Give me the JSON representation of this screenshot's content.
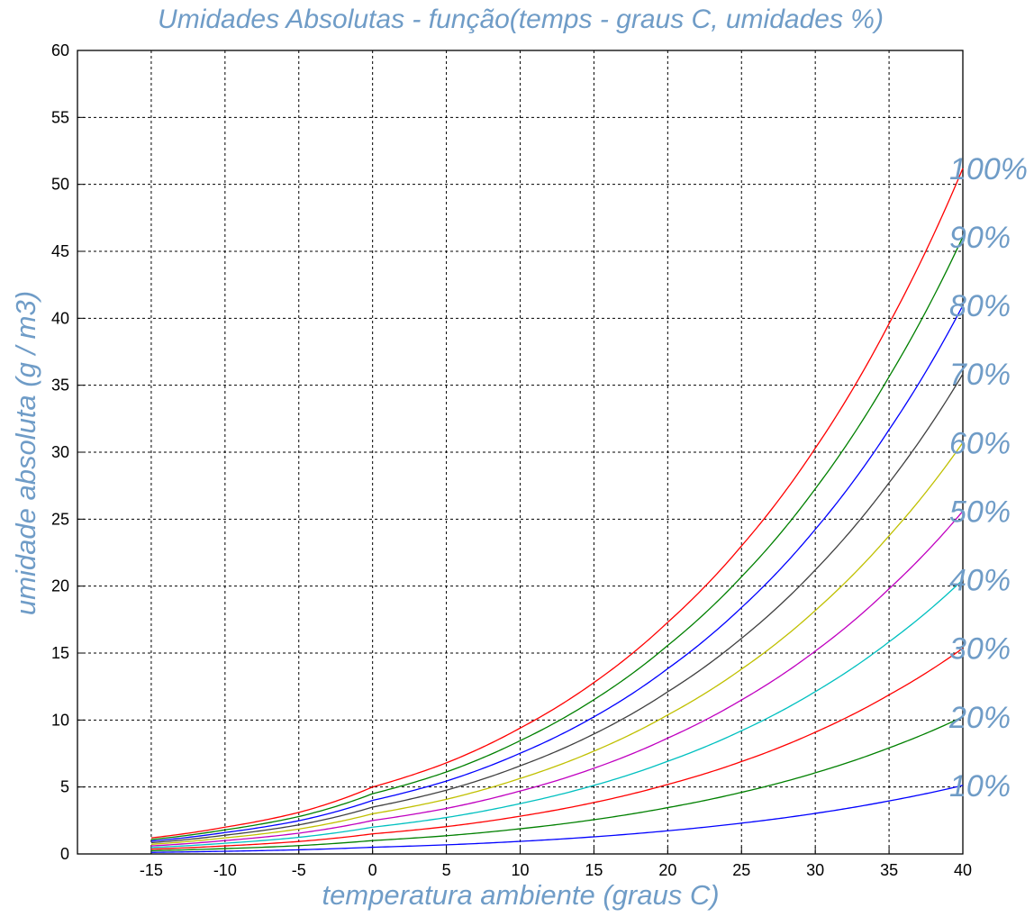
{
  "chart_data": {
    "type": "line",
    "title": "Umidades Absolutas - função(temps - graus C, umidades %)",
    "xlabel": "temperatura ambiente (graus C)",
    "ylabel": "umidade absoluta (g / m3)",
    "xlim": [
      -20,
      40
    ],
    "ylim": [
      0,
      60
    ],
    "x_ticks": [
      -15,
      -10,
      -5,
      0,
      5,
      10,
      15,
      20,
      25,
      30,
      35,
      40
    ],
    "y_ticks": [
      0,
      5,
      10,
      15,
      20,
      25,
      30,
      35,
      40,
      45,
      50,
      55,
      60
    ],
    "grid": true,
    "x": [
      -15,
      -10,
      -5,
      0,
      5,
      10,
      15,
      20,
      25,
      30,
      35,
      40
    ],
    "series": [
      {
        "name": "10%",
        "label": "10%",
        "color": "#0000ff",
        "values": [
          0.12,
          0.2,
          0.31,
          0.5,
          0.68,
          0.94,
          1.28,
          1.73,
          2.3,
          3.03,
          3.96,
          5.12
        ]
      },
      {
        "name": "20%",
        "label": "20%",
        "color": "#008000",
        "values": [
          0.24,
          0.4,
          0.62,
          1,
          1.36,
          1.88,
          2.56,
          3.46,
          4.6,
          6.06,
          7.92,
          10.24
        ]
      },
      {
        "name": "30%",
        "label": "30%",
        "color": "#ff0000",
        "values": [
          0.36,
          0.6,
          0.93,
          1.5,
          2.04,
          2.82,
          3.84,
          5.19,
          6.9,
          9.09,
          11.88,
          15.36
        ]
      },
      {
        "name": "40%",
        "label": "40%",
        "color": "#00c0c0",
        "values": [
          0.48,
          0.8,
          1.24,
          2,
          2.72,
          3.76,
          5.12,
          6.92,
          9.2,
          12.12,
          15.84,
          20.48
        ]
      },
      {
        "name": "50%",
        "label": "50%",
        "color": "#c000c0",
        "values": [
          0.6,
          1,
          1.55,
          2.5,
          3.4,
          4.7,
          6.4,
          8.65,
          11.5,
          15.15,
          19.8,
          25.6
        ]
      },
      {
        "name": "60%",
        "label": "60%",
        "color": "#c0c000",
        "values": [
          0.72,
          1.2,
          1.86,
          3,
          4.08,
          5.64,
          7.68,
          10.38,
          13.8,
          18.18,
          23.76,
          30.72
        ]
      },
      {
        "name": "70%",
        "label": "70%",
        "color": "#404040",
        "values": [
          0.84,
          1.4,
          2.17,
          3.5,
          4.76,
          6.58,
          8.96,
          12.11,
          16.1,
          21.21,
          27.72,
          35.84
        ]
      },
      {
        "name": "80%",
        "label": "80%",
        "color": "#0000ff",
        "values": [
          0.96,
          1.6,
          2.48,
          4,
          5.44,
          7.52,
          10.24,
          13.84,
          18.4,
          24.24,
          31.68,
          40.96
        ]
      },
      {
        "name": "90%",
        "label": "90%",
        "color": "#008000",
        "values": [
          1.08,
          1.8,
          2.79,
          4.5,
          6.12,
          8.46,
          11.52,
          15.57,
          20.7,
          27.27,
          35.64,
          46.08
        ]
      },
      {
        "name": "100%",
        "label": "100%",
        "color": "#ff0000",
        "values": [
          1.2,
          2,
          3.1,
          5,
          6.8,
          9.4,
          12.8,
          17.3,
          23,
          30.3,
          39.6,
          51.2
        ]
      }
    ]
  }
}
